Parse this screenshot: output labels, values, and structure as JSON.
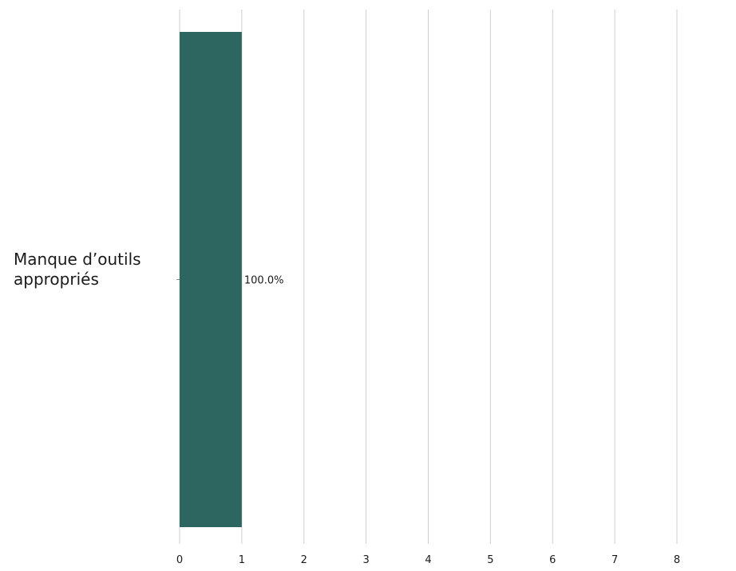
{
  "colors": {
    "bar": "#2d6661",
    "grid": "#cfcfcf",
    "text": "#1a1a1a"
  },
  "chart_data": {
    "type": "bar",
    "orientation": "horizontal",
    "categories": [
      "Manque d’outils appropriés"
    ],
    "category_label_lines": [
      [
        "Manque d’outils",
        "appropriés"
      ]
    ],
    "values": [
      1
    ],
    "data_labels": [
      "100.0%"
    ],
    "xlim": [
      0,
      8
    ],
    "xticks": [
      0,
      1,
      2,
      3,
      4,
      5,
      6,
      7,
      8
    ],
    "xtick_labels": [
      "0",
      "1",
      "2",
      "3",
      "4",
      "5",
      "6",
      "7",
      "8"
    ],
    "title": "",
    "xlabel": "",
    "ylabel": "",
    "grid": "vertical",
    "legend": "none"
  }
}
